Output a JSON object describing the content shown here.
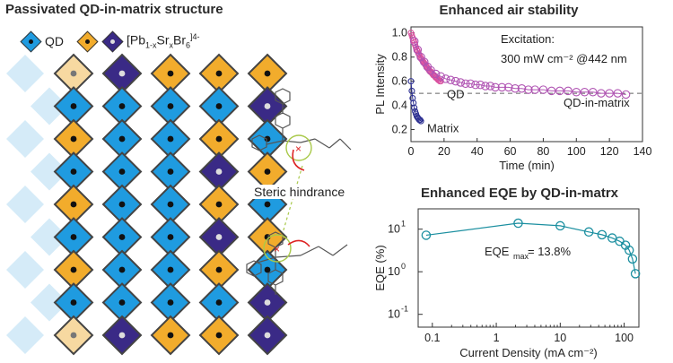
{
  "left_panel": {
    "title": "Passivated QD-in-matrix structure",
    "legend": [
      {
        "label": "QD",
        "fill": "#1f9be0",
        "dot": "#111111"
      },
      {
        "label_main": "[Pb",
        "sub1": "1-x",
        "mid": "Sr",
        "sub2": "x",
        "end": "Br",
        "sub3": "6",
        "sup": "]4-",
        "fill_a": "#f2ac2c",
        "fill_b": "#3a2a86"
      }
    ],
    "annotation": "Steric hindrance",
    "colors": {
      "qd": "#1f9be0",
      "orange": "#f2ac2c",
      "purple": "#3a2a86",
      "orange_fade": "#f7d9a1",
      "blue_fade": "#b9ddf3"
    },
    "grid": [
      [
        "F",
        "P",
        "O",
        "O",
        "O"
      ],
      [
        "B",
        "B",
        "B",
        "B",
        "P"
      ],
      [
        "O",
        "B",
        "B",
        "O",
        "B"
      ],
      [
        "B",
        "B",
        "B",
        "P",
        "O"
      ],
      [
        "O",
        "B",
        "B",
        "O",
        "B"
      ],
      [
        "B",
        "B",
        "B",
        "P",
        "O"
      ],
      [
        "O",
        "B",
        "B",
        "O",
        "B"
      ],
      [
        "B",
        "B",
        "B",
        "B",
        "P"
      ],
      [
        "F",
        "P",
        "O",
        "O",
        "P"
      ]
    ]
  },
  "chart_data": [
    {
      "type": "scatter",
      "title": "Enhanced air stability",
      "xlabel": "Time (min)",
      "ylabel": "PL Intensity",
      "xlim": [
        0,
        140
      ],
      "ylim": [
        0.1,
        1.05
      ],
      "xticks": [
        0,
        20,
        40,
        60,
        80,
        100,
        120,
        140
      ],
      "yticks": [
        0.2,
        0.4,
        0.6,
        0.8,
        1.0
      ],
      "annotation_lines": [
        "Excitation:",
        "300 mW cm⁻² @442 nm"
      ],
      "reference_line_y": 0.5,
      "series": [
        {
          "name": "QD",
          "color": "#d9519f",
          "x": [
            0,
            0.5,
            1,
            1.5,
            2,
            2.5,
            3,
            3.5,
            4,
            4.5,
            5,
            5.5,
            6,
            6.5,
            7,
            7.5,
            8,
            8.5,
            9,
            9.5,
            10,
            10.5,
            11,
            11.5,
            12,
            12.5,
            13,
            13.5,
            14,
            14.5,
            15,
            15.5,
            16,
            16.5,
            17,
            17.5,
            18
          ],
          "y": [
            1.0,
            0.98,
            0.96,
            0.94,
            0.92,
            0.9,
            0.88,
            0.86,
            0.85,
            0.83,
            0.82,
            0.8,
            0.79,
            0.78,
            0.77,
            0.76,
            0.75,
            0.74,
            0.73,
            0.72,
            0.71,
            0.7,
            0.69,
            0.68,
            0.68,
            0.67,
            0.66,
            0.65,
            0.65,
            0.64,
            0.63,
            0.63,
            0.62,
            0.61,
            0.61,
            0.6,
            0.6
          ]
        },
        {
          "name": "QD-in-matrix",
          "color": "#b054b3",
          "x": [
            2,
            4,
            6,
            8,
            10,
            12,
            15,
            18,
            21,
            24,
            27,
            30,
            33,
            36,
            39,
            42,
            45,
            48,
            51,
            55,
            59,
            63,
            67,
            71,
            75,
            80,
            85,
            90,
            95,
            100,
            105,
            110,
            115,
            120,
            125,
            130
          ],
          "y": [
            0.93,
            0.86,
            0.8,
            0.76,
            0.72,
            0.69,
            0.66,
            0.64,
            0.62,
            0.61,
            0.6,
            0.59,
            0.58,
            0.58,
            0.57,
            0.57,
            0.56,
            0.56,
            0.55,
            0.55,
            0.55,
            0.54,
            0.54,
            0.53,
            0.53,
            0.53,
            0.52,
            0.52,
            0.52,
            0.51,
            0.51,
            0.51,
            0.5,
            0.5,
            0.5,
            0.49
          ]
        },
        {
          "name": "Matrix",
          "color": "#2e3192",
          "x": [
            0,
            0.5,
            1,
            1.5,
            2,
            2.5,
            3,
            3.5,
            4,
            4.5,
            5,
            5.5,
            6
          ],
          "y": [
            0.6,
            0.52,
            0.46,
            0.42,
            0.38,
            0.35,
            0.33,
            0.31,
            0.3,
            0.29,
            0.28,
            0.28,
            0.27
          ]
        }
      ]
    },
    {
      "type": "scatter",
      "title": "Enhanced EQE by QD-in-matrx",
      "xlabel": "Current Density (mA cm⁻²)",
      "ylabel": "EQE (%)",
      "xscale": "log",
      "yscale": "log",
      "xlim": [
        0.06,
        170
      ],
      "ylim": [
        0.05,
        30
      ],
      "xticks": [
        0.1,
        1,
        10,
        100
      ],
      "xtick_labels": [
        "0.1",
        "1",
        "10",
        "100"
      ],
      "yticks": [
        0.1,
        1,
        10
      ],
      "annotation": {
        "main": "EQE",
        "sub": "max",
        "rest": " = 13.8%"
      },
      "series": [
        {
          "name": "",
          "color": "#1b8fa0",
          "x": [
            0.08,
            2.2,
            10,
            28,
            45,
            65,
            85,
            105,
            120,
            135,
            150
          ],
          "y": [
            7.2,
            13.8,
            12.0,
            8.6,
            7.4,
            6.2,
            5.2,
            4.2,
            3.2,
            2.0,
            0.9
          ]
        }
      ]
    }
  ]
}
